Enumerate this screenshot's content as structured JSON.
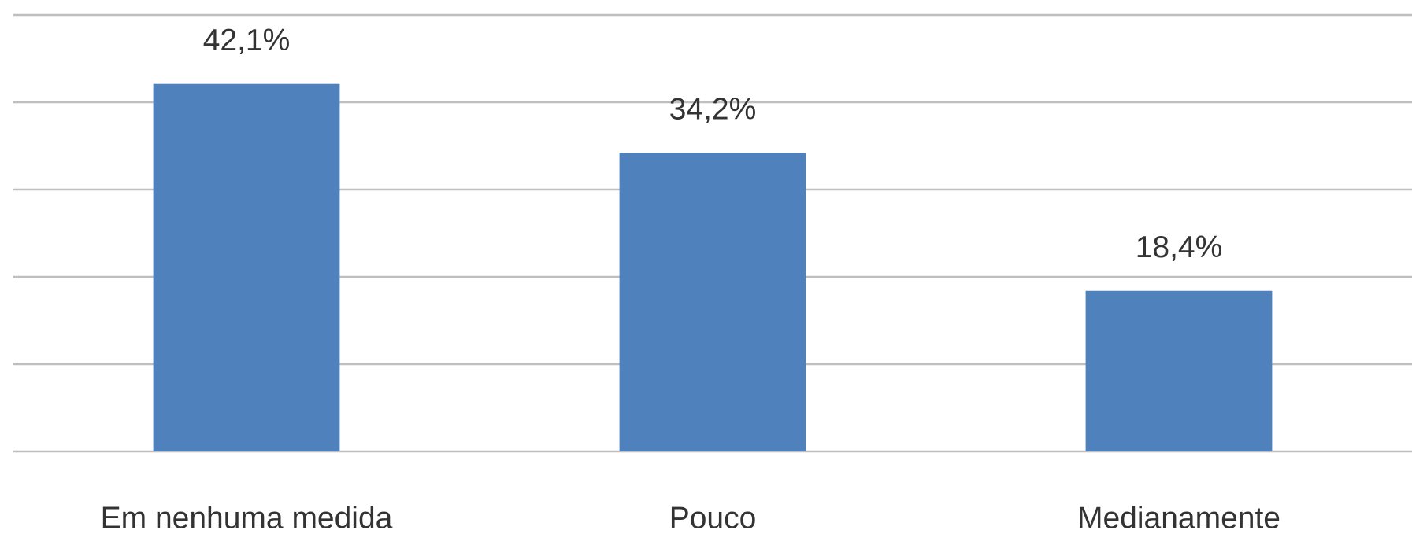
{
  "chart_data": {
    "type": "bar",
    "categories": [
      "Em nenhuma medida",
      "Pouco",
      "Medianamente"
    ],
    "values": [
      42.1,
      34.2,
      18.4
    ],
    "value_labels": [
      "42,1%",
      "34,2%",
      "18,4%"
    ],
    "color": "#4f81bd",
    "ylim": [
      0,
      50
    ],
    "yticks": [
      0,
      10,
      20,
      30,
      40,
      50
    ],
    "grid": true
  }
}
